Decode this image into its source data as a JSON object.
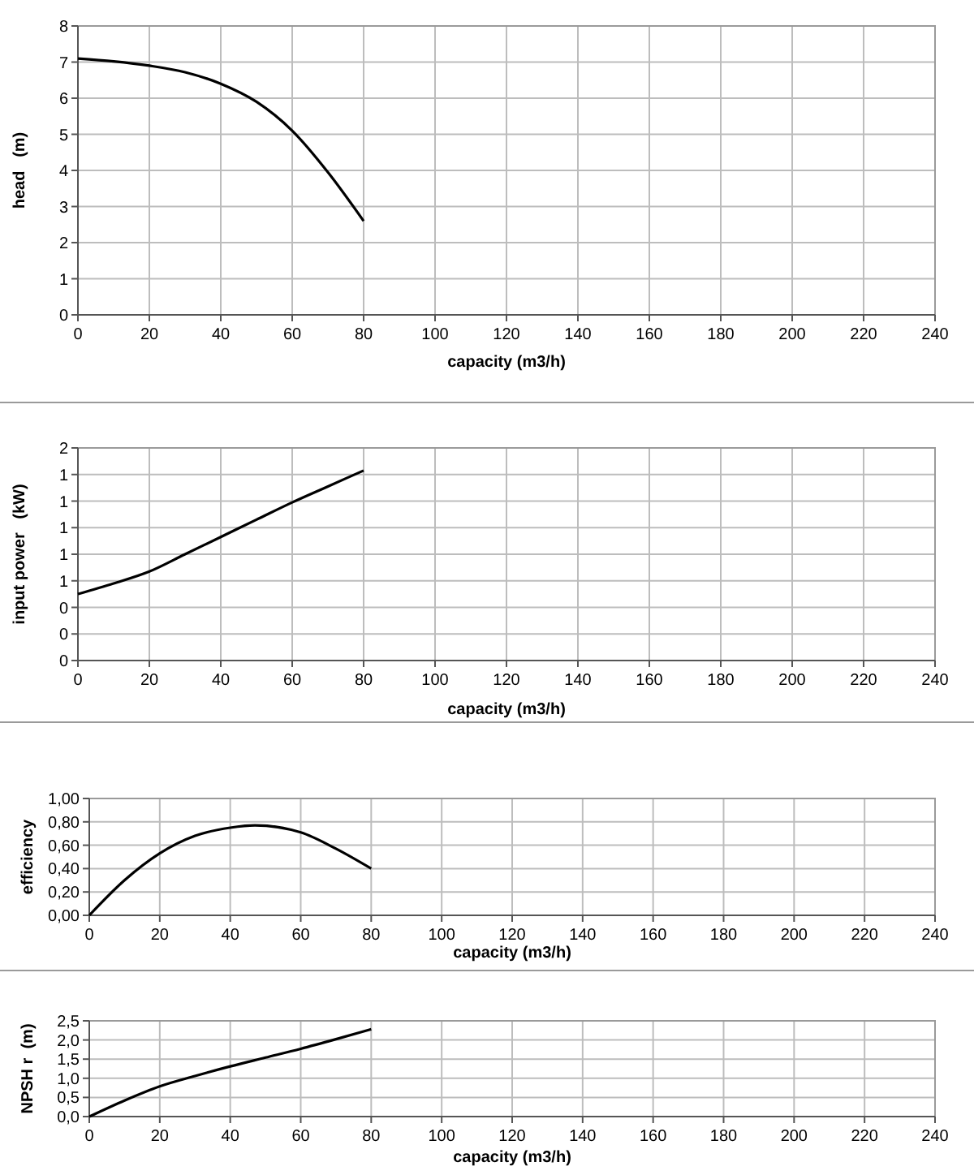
{
  "chart_data": [
    {
      "type": "line",
      "xlabel": "capacity   (m3/h)",
      "ylabel": "head   (m)",
      "x": [
        0,
        10,
        20,
        30,
        40,
        50,
        60,
        70,
        80
      ],
      "values": [
        7.1,
        7.02,
        6.9,
        6.72,
        6.4,
        5.9,
        5.1,
        3.95,
        2.6
      ],
      "color": "#000000",
      "xlim": [
        0,
        240
      ],
      "xticks": [
        0,
        20,
        40,
        60,
        80,
        100,
        120,
        140,
        160,
        180,
        200,
        220,
        240
      ],
      "ylim": [
        0,
        8
      ],
      "yticks": [
        0,
        1,
        2,
        3,
        4,
        5,
        6,
        7,
        8
      ],
      "grid": true,
      "marker": "none",
      "line_style": "solid"
    },
    {
      "type": "line",
      "xlabel": "capacity   (m3/h)",
      "ylabel": "input power   (kW)",
      "x": [
        0,
        10,
        20,
        30,
        40,
        50,
        60,
        70,
        80
      ],
      "values": [
        0.5,
        0.58,
        0.67,
        0.8,
        0.93,
        1.06,
        1.19,
        1.31,
        1.43
      ],
      "color": "#000000",
      "xlim": [
        0,
        240
      ],
      "xticks": [
        0,
        20,
        40,
        60,
        80,
        100,
        120,
        140,
        160,
        180,
        200,
        220,
        240
      ],
      "ylim": [
        0,
        1.6
      ],
      "yticks": [
        {
          "value": 0,
          "label": "0"
        },
        {
          "value": 0.2,
          "label": "0"
        },
        {
          "value": 0.4,
          "label": "0"
        },
        {
          "value": 0.6,
          "label": "1"
        },
        {
          "value": 0.8,
          "label": "1"
        },
        {
          "value": 1.0,
          "label": "1"
        },
        {
          "value": 1.2,
          "label": "1"
        },
        {
          "value": 1.4,
          "label": "1"
        },
        {
          "value": 1.6,
          "label": "2"
        }
      ],
      "grid": true,
      "marker": "none",
      "line_style": "solid"
    },
    {
      "type": "line",
      "xlabel": "capacity   (m3/h)",
      "ylabel": "efficiency",
      "x": [
        0,
        10,
        20,
        30,
        40,
        47,
        60,
        70,
        80
      ],
      "values": [
        0,
        0.3,
        0.53,
        0.68,
        0.75,
        0.77,
        0.71,
        0.57,
        0.4
      ],
      "color": "#000000",
      "xlim": [
        0,
        240
      ],
      "xticks": [
        0,
        20,
        40,
        60,
        80,
        100,
        120,
        140,
        160,
        180,
        200,
        220,
        240
      ],
      "ylim": [
        0,
        1
      ],
      "yticks": [
        {
          "value": 0,
          "label": "0,00"
        },
        {
          "value": 0.2,
          "label": "0,20"
        },
        {
          "value": 0.4,
          "label": "0,40"
        },
        {
          "value": 0.6,
          "label": "0,60"
        },
        {
          "value": 0.8,
          "label": "0,80"
        },
        {
          "value": 1,
          "label": "1,00"
        }
      ],
      "grid": true,
      "marker": "none",
      "line_style": "solid"
    },
    {
      "type": "line",
      "xlabel": "capacity   (m3/h)",
      "ylabel": "NPSH r  (m)",
      "x": [
        0,
        10,
        20,
        30,
        40,
        50,
        60,
        70,
        80
      ],
      "values": [
        0,
        0.42,
        0.79,
        1.06,
        1.31,
        1.54,
        1.77,
        2.02,
        2.28
      ],
      "color": "#000000",
      "xlim": [
        0,
        240
      ],
      "xticks": [
        0,
        20,
        40,
        60,
        80,
        100,
        120,
        140,
        160,
        180,
        200,
        220,
        240
      ],
      "ylim": [
        0,
        2.5
      ],
      "yticks": [
        {
          "value": 0,
          "label": "0,0"
        },
        {
          "value": 0.5,
          "label": "0,5"
        },
        {
          "value": 1,
          "label": "1,0"
        },
        {
          "value": 1.5,
          "label": "1,5"
        },
        {
          "value": 2,
          "label": "2,0"
        },
        {
          "value": 2.5,
          "label": "2,5"
        }
      ],
      "grid": true,
      "marker": "none",
      "line_style": "solid"
    }
  ]
}
